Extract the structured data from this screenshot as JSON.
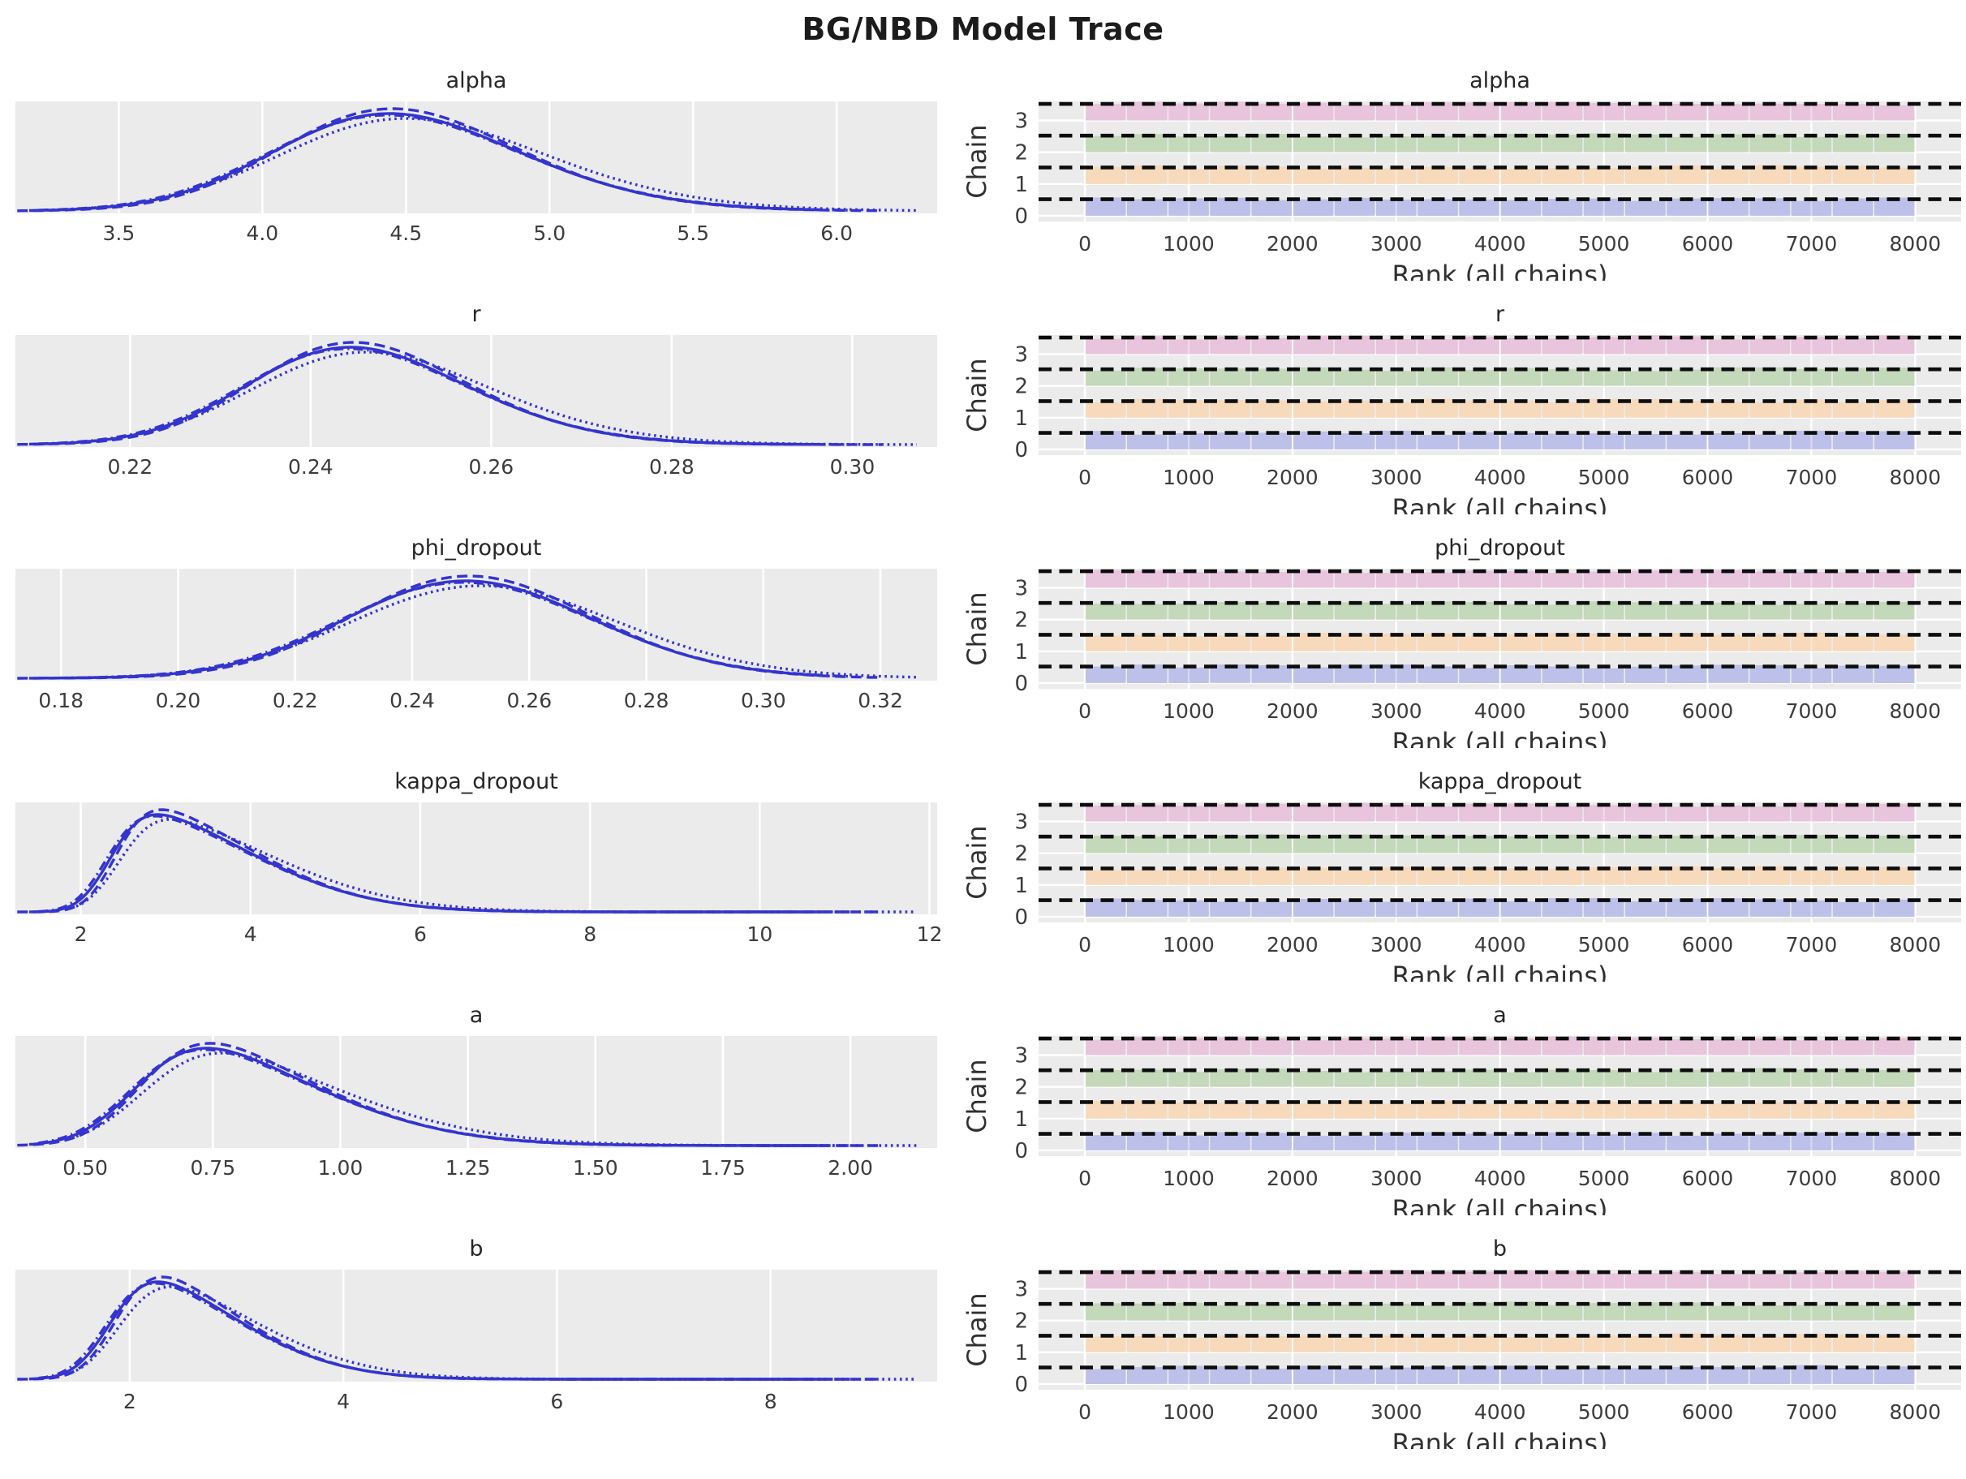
{
  "title": "BG/NBD Model Trace",
  "styles": {
    "axes_bg": "#ebebeb",
    "grid_color": "#ffffff",
    "kde_line_color": "#3434cf",
    "ref_line_color": "#0d0d0d",
    "text_color": "#2e2e2e",
    "chain_colors": [
      "#bdc1e9",
      "#f6dabb",
      "#c3d9ba",
      "#e8c4dd"
    ]
  },
  "chart_data": {
    "type": "trace-plot",
    "suptitle": "BG/NBD Model Trace",
    "left_column": "posterior density (KDE), one curve per chain",
    "right_column": "rank bar plot (uniformity diagnostic), one band per chain",
    "chains": {
      "count": 4,
      "labels": [
        "0",
        "1",
        "2",
        "3"
      ],
      "linestyles": [
        "solid",
        "dashed",
        "dashdot",
        "dotted"
      ],
      "loc_shift_frac": [
        0,
        0.006,
        -0.004,
        0.01
      ],
      "amp_mult": [
        1.0,
        1.05,
        0.985,
        0.95
      ],
      "scale_mult": [
        1.0,
        0.97,
        1.02,
        1.08
      ],
      "span_frac": [
        [
          0.015,
          0.875
        ],
        [
          0.002,
          0.94
        ],
        [
          0.025,
          0.905
        ],
        [
          0.06,
          0.978
        ]
      ]
    },
    "rank_axis": {
      "xlabel": "Rank (all chains)",
      "ylabel": "Chain",
      "xticks": [
        0,
        1000,
        2000,
        3000,
        4000,
        5000,
        6000,
        7000,
        8000
      ],
      "xtick_labels": [
        "0",
        "1000",
        "2000",
        "3000",
        "4000",
        "5000",
        "6000",
        "7000",
        "8000"
      ],
      "ytick_labels": [
        "0",
        "1",
        "2",
        "3"
      ],
      "xlim": [
        -446,
        8443
      ],
      "bins": 20,
      "bar_span": [
        0,
        8000
      ],
      "distribution": "approximately uniform with small fluctuations around the dashed expected-count line",
      "seed": 20240704
    },
    "params": [
      {
        "name": "alpha",
        "kde": {
          "xlim": [
            3.14,
            6.35
          ],
          "xticks": [
            3.5,
            4.0,
            4.5,
            5.0,
            5.5,
            6.0
          ],
          "xtick_labels": [
            "3.5",
            "4.0",
            "4.5",
            "5.0",
            "5.5",
            "6.0"
          ],
          "mode": 4.45,
          "loc": 4.13,
          "scale": 0.58,
          "skew": 1.4
        }
      },
      {
        "name": "r",
        "kde": {
          "xlim": [
            0.2073,
            0.3094
          ],
          "xticks": [
            0.22,
            0.24,
            0.26,
            0.28,
            0.3
          ],
          "xtick_labels": [
            "0.22",
            "0.24",
            "0.26",
            "0.28",
            "0.30"
          ],
          "mode": 0.245,
          "loc": 0.2355,
          "scale": 0.0165,
          "skew": 1.4
        }
      },
      {
        "name": "phi_dropout",
        "kde": {
          "xlim": [
            0.1722,
            0.3297
          ],
          "xticks": [
            0.18,
            0.2,
            0.22,
            0.24,
            0.26,
            0.28,
            0.3,
            0.32
          ],
          "xtick_labels": [
            "0.18",
            "0.20",
            "0.22",
            "0.24",
            "0.26",
            "0.28",
            "0.30",
            "0.32"
          ],
          "mode": 0.247,
          "loc": 0.236,
          "scale": 0.026,
          "skew": 1.0
        }
      },
      {
        "name": "kappa_dropout",
        "kde": {
          "xlim": [
            1.23,
            12.09
          ],
          "xticks": [
            2,
            4,
            6,
            8,
            10,
            12
          ],
          "xtick_labels": [
            "2",
            "4",
            "6",
            "8",
            "10",
            "12"
          ],
          "mode": 2.85,
          "loc": 2.35,
          "scale": 1.5,
          "skew": 5.0
        }
      },
      {
        "name": "a",
        "kde": {
          "xlim": [
            0.363,
            2.17
          ],
          "xticks": [
            0.5,
            0.75,
            1.0,
            1.25,
            1.5,
            1.75,
            2.0
          ],
          "xtick_labels": [
            "0.50",
            "0.75",
            "1.00",
            "1.25",
            "1.50",
            "1.75",
            "2.00"
          ],
          "mode": 0.7,
          "loc": 0.6,
          "scale": 0.3,
          "skew": 3.2
        }
      },
      {
        "name": "b",
        "kde": {
          "xlim": [
            0.93,
            9.56
          ],
          "xticks": [
            2,
            4,
            6,
            8
          ],
          "xtick_labels": [
            "2",
            "4",
            "6",
            "8"
          ],
          "mode": 2.15,
          "loc": 1.82,
          "scale": 1.05,
          "skew": 3.8
        }
      }
    ]
  }
}
